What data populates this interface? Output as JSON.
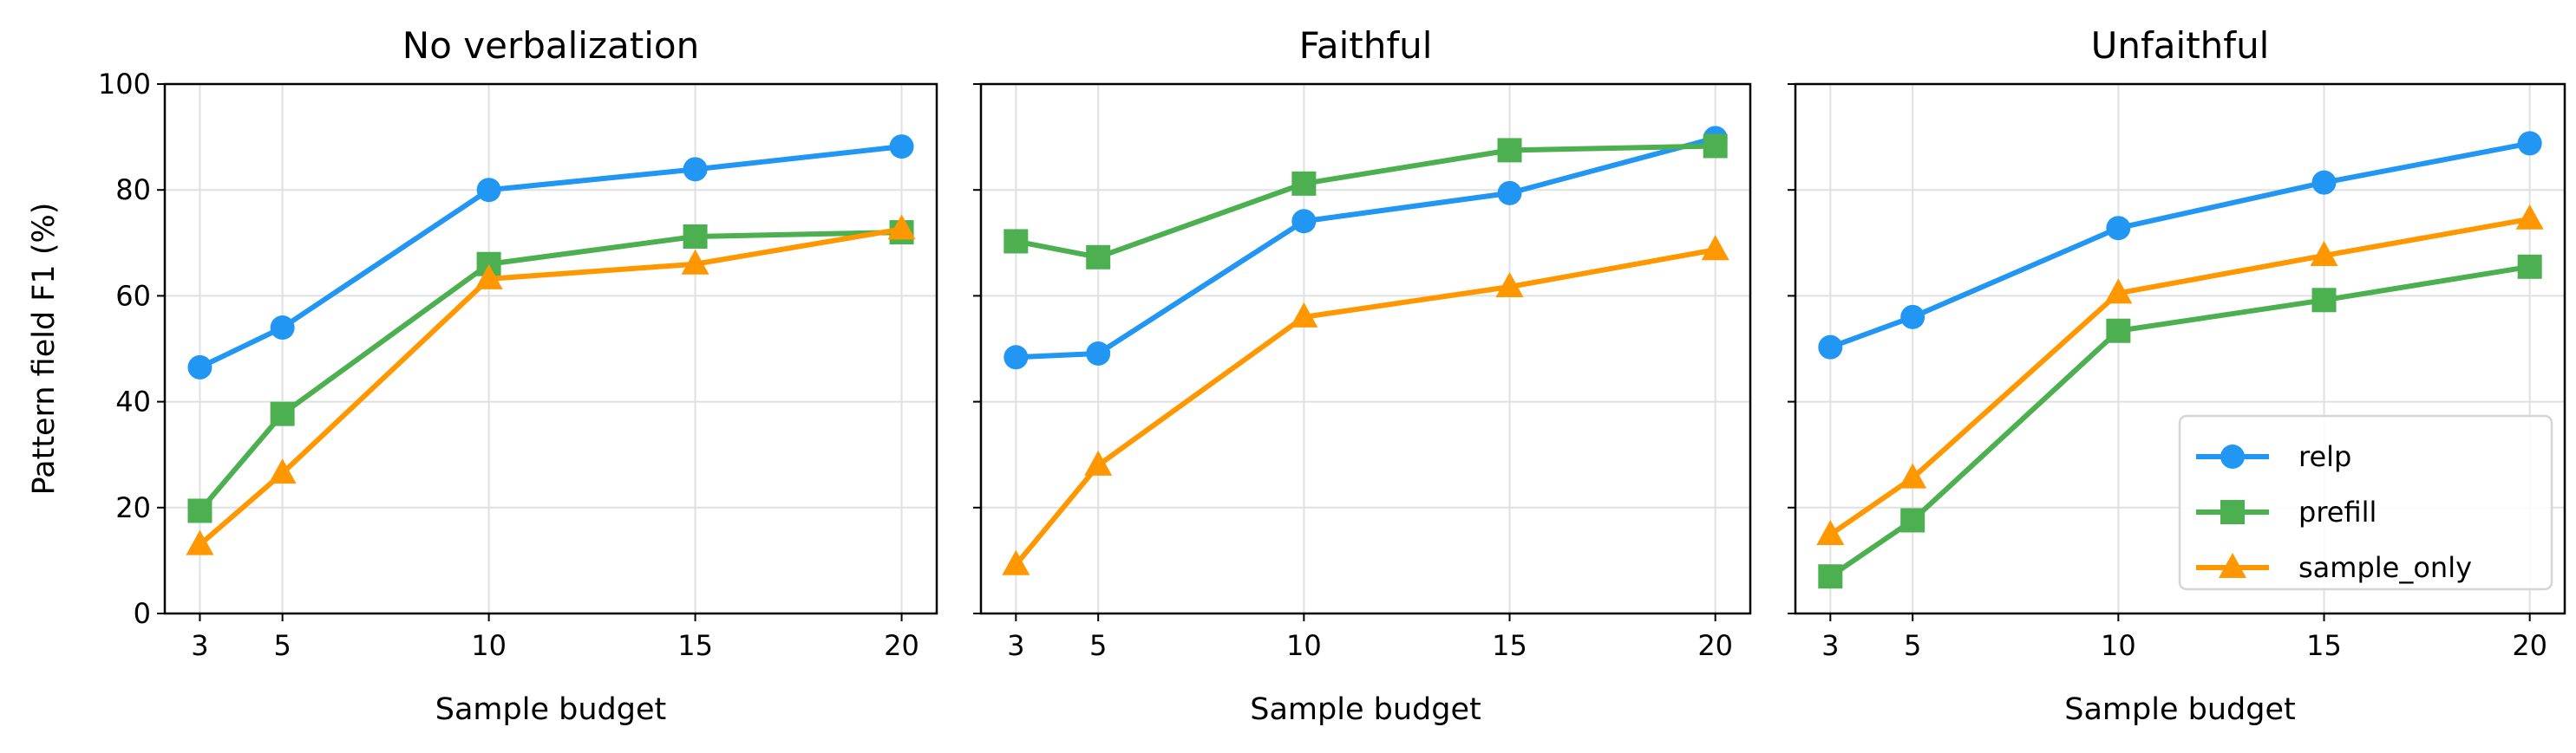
{
  "chart_data": [
    {
      "type": "line",
      "title": "No verbalization",
      "xlabel": "Sample budget",
      "ylabel": "Pattern field F1 (%)",
      "x": [
        3,
        5,
        10,
        15,
        20
      ],
      "xticks": [
        "3",
        "5",
        "10",
        "15",
        "20"
      ],
      "yticks": [
        "0",
        "20",
        "40",
        "60",
        "80",
        "100"
      ],
      "xlim": [
        2.15,
        20.85
      ],
      "ylim": [
        0,
        100
      ],
      "grid": true,
      "series": [
        {
          "name": "relp",
          "color": "#2196F3",
          "marker": "circle",
          "values": [
            46.5,
            54.0,
            80.0,
            83.9,
            88.2
          ]
        },
        {
          "name": "prefill",
          "color": "#4CAF50",
          "marker": "square",
          "values": [
            19.4,
            37.7,
            66.0,
            71.2,
            72.0
          ]
        },
        {
          "name": "sample_only",
          "color": "#FF9800",
          "marker": "triangle",
          "values": [
            13.0,
            26.5,
            63.2,
            66.0,
            72.6
          ]
        }
      ]
    },
    {
      "type": "line",
      "title": "Faithful",
      "xlabel": "Sample budget",
      "x": [
        3,
        5,
        10,
        15,
        20
      ],
      "xticks": [
        "3",
        "5",
        "10",
        "15",
        "20"
      ],
      "xlim": [
        2.15,
        20.85
      ],
      "ylim": [
        0,
        100
      ],
      "grid": true,
      "series": [
        {
          "name": "relp",
          "color": "#2196F3",
          "marker": "circle",
          "values": [
            48.4,
            49.1,
            74.1,
            79.4,
            89.8
          ]
        },
        {
          "name": "prefill",
          "color": "#4CAF50",
          "marker": "square",
          "values": [
            70.3,
            67.3,
            81.2,
            87.5,
            88.3
          ]
        },
        {
          "name": "sample_only",
          "color": "#FF9800",
          "marker": "triangle",
          "values": [
            9.2,
            28.0,
            56.0,
            61.7,
            68.7
          ]
        }
      ]
    },
    {
      "type": "line",
      "title": "Unfaithful",
      "xlabel": "Sample budget",
      "x": [
        3,
        5,
        10,
        15,
        20
      ],
      "xticks": [
        "3",
        "5",
        "10",
        "15",
        "20"
      ],
      "xlim": [
        2.15,
        20.85
      ],
      "ylim": [
        0,
        100
      ],
      "grid": true,
      "legend": "lower-right",
      "series": [
        {
          "name": "relp",
          "color": "#2196F3",
          "marker": "circle",
          "values": [
            50.3,
            56.0,
            72.8,
            81.4,
            88.8
          ]
        },
        {
          "name": "prefill",
          "color": "#4CAF50",
          "marker": "square",
          "values": [
            7.0,
            17.6,
            53.4,
            59.2,
            65.5
          ]
        },
        {
          "name": "sample_only",
          "color": "#FF9800",
          "marker": "triangle",
          "values": [
            14.9,
            25.6,
            60.5,
            67.6,
            74.5
          ]
        }
      ]
    }
  ]
}
